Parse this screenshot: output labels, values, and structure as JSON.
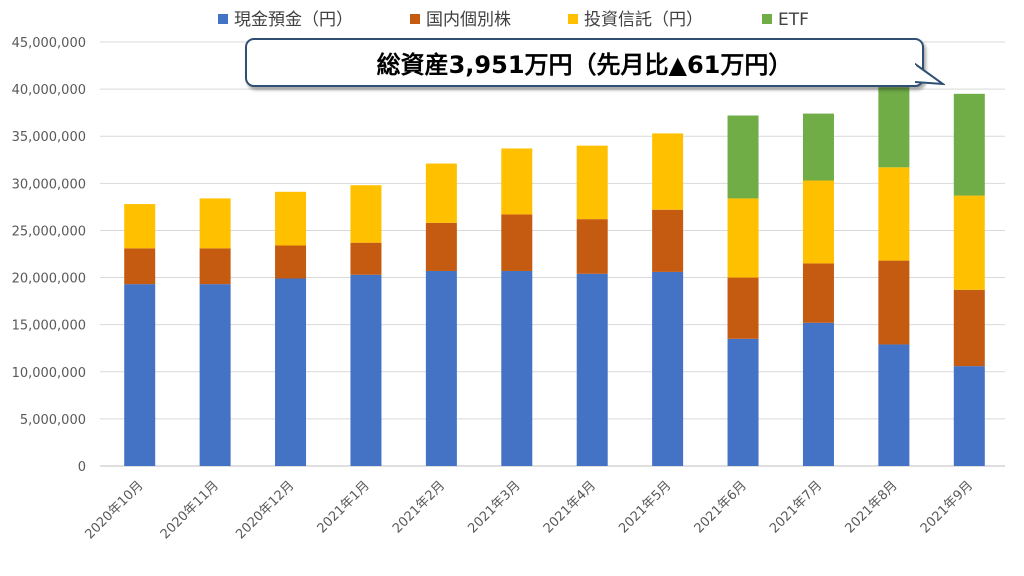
{
  "chart_data": {
    "type": "bar",
    "stacked": true,
    "categories": [
      "2020年10月",
      "2020年11月",
      "2020年12月",
      "2021年1月",
      "2021年2月",
      "2021年3月",
      "2021年4月",
      "2021年5月",
      "2021年6月",
      "2021年7月",
      "2021年8月",
      "2021年9月"
    ],
    "series": [
      {
        "name": "現金預金（円）",
        "color": "#4472C4",
        "values": [
          19300000,
          19300000,
          19900000,
          20300000,
          20700000,
          20700000,
          20400000,
          20600000,
          13500000,
          15200000,
          12900000,
          10600000
        ]
      },
      {
        "name": "国内個別株",
        "color": "#C55A11",
        "values": [
          3800000,
          3800000,
          3500000,
          3400000,
          5100000,
          6000000,
          5800000,
          6600000,
          6500000,
          6300000,
          8900000,
          8100000
        ]
      },
      {
        "name": "投資信託（円）",
        "color": "#FFC000",
        "values": [
          4700000,
          5300000,
          5700000,
          6100000,
          6300000,
          7000000,
          7800000,
          8100000,
          8400000,
          8800000,
          9900000,
          10000000
        ]
      },
      {
        "name": "ETF",
        "color": "#70AD47",
        "values": [
          0,
          0,
          0,
          0,
          0,
          0,
          0,
          0,
          8800000,
          7100000,
          8500000,
          10800000
        ]
      }
    ],
    "ylim": [
      0,
      45000000
    ],
    "yticks": [
      "0",
      "5,000,000",
      "10,000,000",
      "15,000,000",
      "20,000,000",
      "25,000,000",
      "30,000,000",
      "35,000,000",
      "40,000,000",
      "45,000,000"
    ],
    "legend_position": "top",
    "grid": true
  },
  "annotation": "総資産3,951万円（先月比▲61万円）"
}
